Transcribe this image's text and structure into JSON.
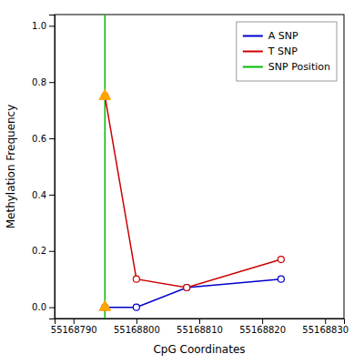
{
  "chart_data": {
    "type": "line",
    "xlabel": "CpG Coordinates",
    "ylabel": "Methylation Frequency",
    "x": [
      55168795,
      55168800,
      55168808,
      55168823
    ],
    "series": [
      {
        "name": "A SNP",
        "color": "#0000cc",
        "marker": "circle",
        "values": [
          0.0,
          0.0,
          0.07,
          0.1
        ]
      },
      {
        "name": "T SNP",
        "color": "#cc0000",
        "marker": "circle",
        "values": [
          0.75,
          0.1,
          0.07,
          0.17
        ]
      },
      {
        "name": "SNP Position",
        "type": "vline",
        "color": "#00bb00",
        "x": [
          55168795
        ]
      },
      {
        "type": "scatter",
        "marker": "triangle",
        "color": "#FFA500",
        "x": [
          55168795,
          55168795
        ],
        "values": [
          0.0,
          0.75
        ]
      }
    ],
    "xlim": [
      55168787,
      55168833
    ],
    "ylim": [
      -0.04,
      1.04
    ],
    "xticks": [
      55168790,
      55168800,
      55168810,
      55168820,
      55168830
    ],
    "yticks": [
      {
        "value": 0.0,
        "label": "0.0"
      },
      0.2,
      0.4,
      0.6,
      0.8,
      {
        "value": 1.0,
        "label": "1.0"
      }
    ],
    "grid": false,
    "legend": "upper right"
  }
}
